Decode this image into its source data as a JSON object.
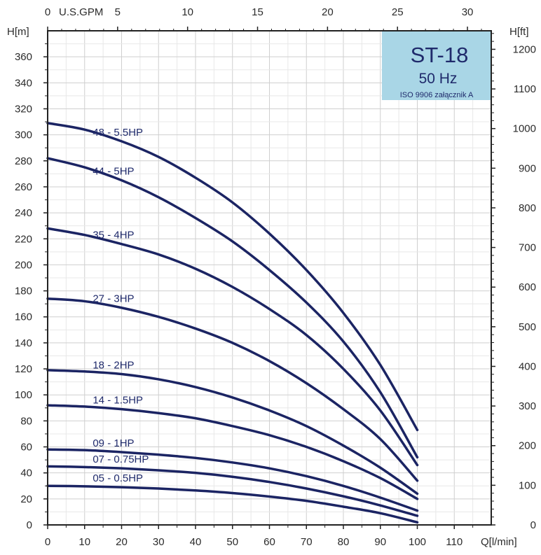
{
  "chart_data": {
    "type": "line",
    "title_box": {
      "model": "ST-18",
      "freq": "50 Hz",
      "standard": "ISO 9906 załącznik A",
      "bg": "#a9d6e6",
      "text_color": "#1f2a6b"
    },
    "colors": {
      "curve": "#1b2463",
      "frame": "#222222",
      "grid_major": "#cfcfcf",
      "grid_minor": "#e8e8e8"
    },
    "x_axis": {
      "label": "Q[l/min]",
      "range": [
        0,
        120
      ],
      "ticks": [
        0,
        10,
        20,
        30,
        40,
        50,
        60,
        70,
        80,
        90,
        100,
        110
      ]
    },
    "top_axis": {
      "label": "U.S.GPM",
      "range": [
        0,
        31.7
      ],
      "ticks": [
        0,
        5,
        10,
        15,
        20,
        25,
        30
      ]
    },
    "y_axis": {
      "label": "H[m]",
      "range": [
        0,
        380
      ],
      "ticks": [
        0,
        20,
        40,
        60,
        80,
        100,
        120,
        140,
        160,
        180,
        200,
        220,
        240,
        260,
        280,
        300,
        320,
        340,
        360
      ]
    },
    "y2_axis": {
      "label": "H[ft]",
      "range": [
        0,
        1246.7
      ],
      "ticks": [
        0,
        100,
        200,
        300,
        400,
        500,
        600,
        700,
        800,
        900,
        1000,
        1100,
        1200
      ]
    },
    "grid": true,
    "series": [
      {
        "name": "48 - 5.5HP",
        "x": [
          0,
          10,
          20,
          30,
          40,
          50,
          60,
          70,
          80,
          90,
          100
        ],
        "y": [
          309,
          304,
          295,
          283,
          267,
          248,
          224,
          196,
          163,
          123,
          73
        ]
      },
      {
        "name": "44 - 5HP",
        "x": [
          0,
          10,
          20,
          30,
          40,
          50,
          60,
          70,
          80,
          90,
          100
        ],
        "y": [
          282,
          275,
          265,
          252,
          236,
          218,
          196,
          171,
          141,
          102,
          52
        ]
      },
      {
        "name": "35 - 4HP",
        "x": [
          0,
          10,
          20,
          30,
          40,
          50,
          60,
          70,
          80,
          90,
          100
        ],
        "y": [
          228,
          223,
          216,
          208,
          197,
          183,
          166,
          146,
          120,
          88,
          46
        ]
      },
      {
        "name": "27 - 3HP",
        "x": [
          0,
          10,
          20,
          30,
          40,
          50,
          60,
          70,
          80,
          90,
          100
        ],
        "y": [
          174,
          172,
          167,
          160,
          151,
          140,
          126,
          109,
          89,
          66,
          34
        ]
      },
      {
        "name": "18 - 2HP",
        "x": [
          0,
          10,
          20,
          30,
          40,
          50,
          60,
          70,
          80,
          90,
          100
        ],
        "y": [
          119,
          118,
          116,
          112,
          106,
          98,
          88,
          76,
          61,
          44,
          24
        ]
      },
      {
        "name": "14 - 1.5HP",
        "x": [
          0,
          10,
          20,
          30,
          40,
          50,
          60,
          70,
          80,
          90,
          100
        ],
        "y": [
          92,
          91,
          89,
          86,
          82,
          76,
          69,
          60,
          49,
          36,
          20
        ]
      },
      {
        "name": "09 - 1HP",
        "x": [
          0,
          10,
          20,
          30,
          40,
          50,
          60,
          70,
          80,
          90,
          100
        ],
        "y": [
          58,
          57.5,
          56,
          54,
          51.5,
          48,
          43.5,
          37.5,
          30,
          21,
          11
        ]
      },
      {
        "name": "07 - 0.75HP",
        "x": [
          0,
          10,
          20,
          30,
          40,
          50,
          60,
          70,
          80,
          90,
          100
        ],
        "y": [
          45,
          44.5,
          43.5,
          42,
          40,
          37,
          33,
          28,
          22,
          15,
          7
        ]
      },
      {
        "name": "05 - 0.5HP",
        "x": [
          0,
          10,
          20,
          30,
          40,
          50,
          60,
          70,
          80,
          90,
          100
        ],
        "y": [
          30,
          29.7,
          29,
          28,
          26.5,
          24.5,
          21.8,
          18.5,
          14,
          9,
          2
        ]
      }
    ]
  }
}
